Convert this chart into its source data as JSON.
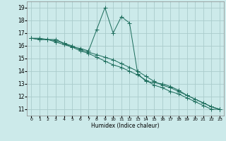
{
  "xlabel": "Humidex (Indice chaleur)",
  "background_color": "#cceaea",
  "grid_color": "#aacccc",
  "line_color": "#1a6b5a",
  "xlim": [
    -0.5,
    23.5
  ],
  "ylim": [
    10.5,
    19.5
  ],
  "xticks": [
    0,
    1,
    2,
    3,
    4,
    5,
    6,
    7,
    8,
    9,
    10,
    11,
    12,
    13,
    14,
    15,
    16,
    17,
    18,
    19,
    20,
    21,
    22,
    23
  ],
  "yticks": [
    11,
    12,
    13,
    14,
    15,
    16,
    17,
    18,
    19
  ],
  "series1_x": [
    0,
    1,
    2,
    3,
    4,
    5,
    6,
    7,
    8,
    9,
    10,
    11,
    12,
    13,
    14,
    15,
    16,
    17,
    18,
    19,
    20,
    21,
    22,
    23
  ],
  "series1_y": [
    16.6,
    16.6,
    16.5,
    16.5,
    16.2,
    15.9,
    15.8,
    15.6,
    17.3,
    19.0,
    17.0,
    18.3,
    17.8,
    13.8,
    13.2,
    13.1,
    13.0,
    12.8,
    12.5,
    12.1,
    11.8,
    11.5,
    11.2,
    11.0
  ],
  "series2_x": [
    0,
    1,
    2,
    3,
    4,
    5,
    6,
    7,
    8,
    9,
    10,
    11,
    12,
    13,
    14,
    15,
    16,
    17,
    18,
    19,
    20,
    21,
    22,
    23
  ],
  "series2_y": [
    16.6,
    16.5,
    16.5,
    16.4,
    16.2,
    16.0,
    15.7,
    15.5,
    15.3,
    15.1,
    14.9,
    14.6,
    14.3,
    14.0,
    13.6,
    13.2,
    12.9,
    12.7,
    12.4,
    12.1,
    11.8,
    11.5,
    11.2,
    11.0
  ],
  "series3_x": [
    0,
    1,
    2,
    3,
    4,
    5,
    6,
    7,
    8,
    9,
    10,
    11,
    12,
    13,
    14,
    15,
    16,
    17,
    18,
    19,
    20,
    21,
    22,
    23
  ],
  "series3_y": [
    16.6,
    16.5,
    16.5,
    16.3,
    16.1,
    15.9,
    15.6,
    15.4,
    15.1,
    14.8,
    14.5,
    14.3,
    14.0,
    13.7,
    13.3,
    12.9,
    12.7,
    12.4,
    12.2,
    11.9,
    11.6,
    11.3,
    11.0,
    11.0
  ]
}
